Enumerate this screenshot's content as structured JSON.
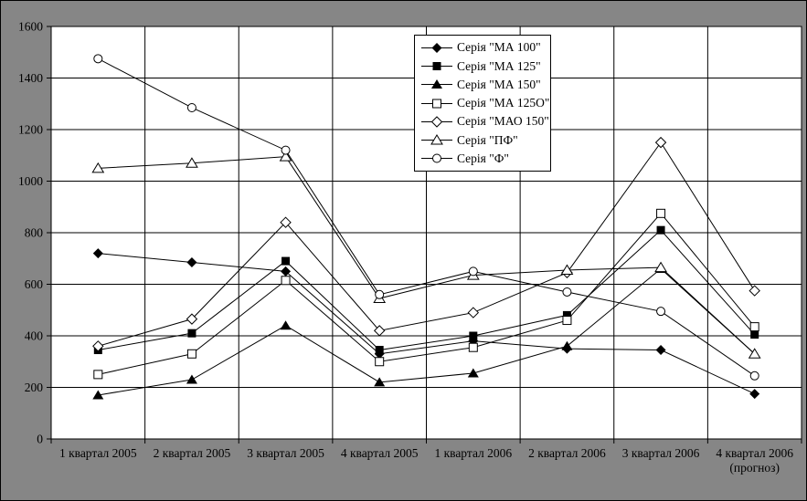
{
  "chart_data": {
    "type": "line",
    "title": "",
    "xlabel": "",
    "ylabel": "",
    "ylim": [
      0,
      1600
    ],
    "ytick_step": 200,
    "y_ticks": [
      0,
      200,
      400,
      600,
      800,
      1000,
      1200,
      1400,
      1600
    ],
    "grid": true,
    "legend_position": "top-center-inside",
    "categories": [
      {
        "label": "1 квартал 2005",
        "sublabel": ""
      },
      {
        "label": "2 квартал 2005",
        "sublabel": ""
      },
      {
        "label": "3 квартал 2005",
        "sublabel": ""
      },
      {
        "label": "4 квартал 2005",
        "sublabel": ""
      },
      {
        "label": "1 квартал 2006",
        "sublabel": ""
      },
      {
        "label": "2 квартал 2006",
        "sublabel": ""
      },
      {
        "label": "3 квартал 2006",
        "sublabel": ""
      },
      {
        "label": "4 квартал 2006",
        "sublabel": "(прогноз)"
      }
    ],
    "series": [
      {
        "name": "Серія \"МА 100\"",
        "marker": "diamond-filled",
        "values": [
          720,
          685,
          650,
          330,
          380,
          350,
          345,
          175
        ]
      },
      {
        "name": "Серія \"МА 125\"",
        "marker": "square-filled",
        "values": [
          345,
          410,
          690,
          345,
          400,
          480,
          810,
          405
        ]
      },
      {
        "name": "Серія \"МА 150\"",
        "marker": "triangle-filled",
        "values": [
          170,
          230,
          440,
          220,
          255,
          360,
          660,
          330
        ]
      },
      {
        "name": "Серія \"МА 125О\"",
        "marker": "square-open",
        "values": [
          250,
          330,
          615,
          300,
          355,
          460,
          875,
          435
        ]
      },
      {
        "name": "Серія \"МАО 150\"",
        "marker": "diamond-open",
        "values": [
          360,
          465,
          840,
          420,
          490,
          645,
          1150,
          575
        ]
      },
      {
        "name": "Серія \"ПФ\"",
        "marker": "triangle-open",
        "values": [
          1050,
          1070,
          1095,
          545,
          635,
          655,
          665,
          330
        ]
      },
      {
        "name": "Серія \"Ф\"",
        "marker": "circle-open",
        "values": [
          1475,
          1285,
          1120,
          560,
          650,
          570,
          495,
          245
        ]
      }
    ],
    "colors": {
      "outer_background": "#868686",
      "plot_background": "#ffffff",
      "line": "#000000",
      "marker_open_fill": "#ffffff",
      "text": "#000000"
    }
  }
}
